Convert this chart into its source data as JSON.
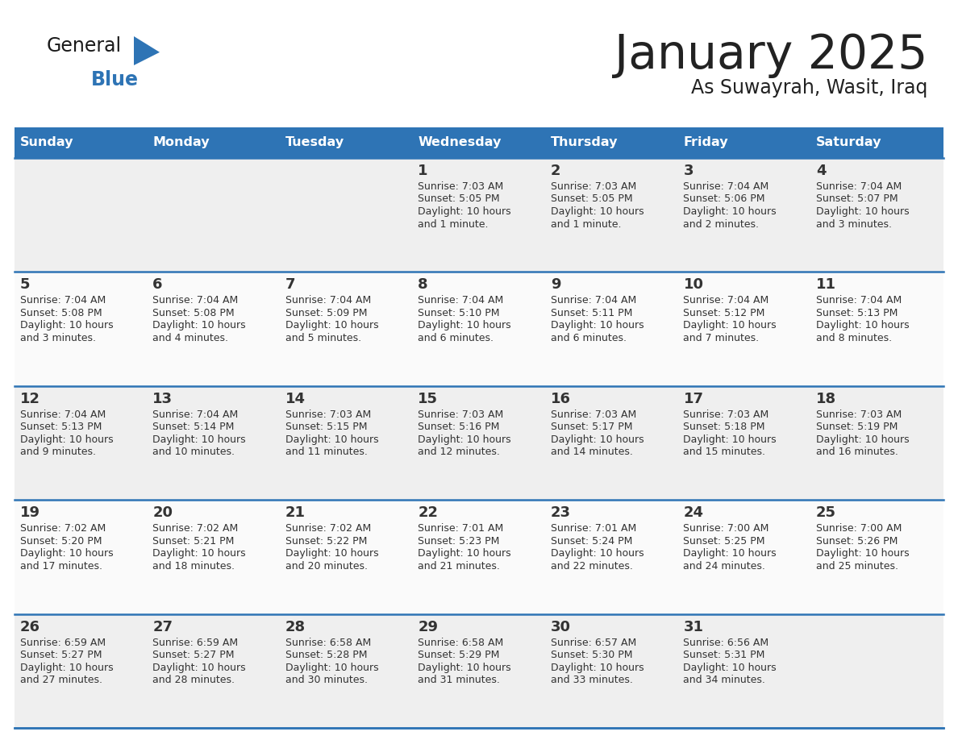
{
  "title": "January 2025",
  "subtitle": "As Suwayrah, Wasit, Iraq",
  "days_of_week": [
    "Sunday",
    "Monday",
    "Tuesday",
    "Wednesday",
    "Thursday",
    "Friday",
    "Saturday"
  ],
  "header_bg": "#2E74B5",
  "header_text": "#FFFFFF",
  "cell_bg_odd": "#EFEFEF",
  "cell_bg_even": "#FAFAFA",
  "divider_color": "#2E74B5",
  "text_color": "#333333",
  "title_color": "#222222",
  "logo_black": "#1a1a1a",
  "logo_blue": "#2E74B5",
  "calendar_data": [
    [
      null,
      null,
      null,
      {
        "day": 1,
        "sunrise": "7:03 AM",
        "sunset": "5:05 PM",
        "daylight": "10 hours and 1 minute."
      },
      {
        "day": 2,
        "sunrise": "7:03 AM",
        "sunset": "5:05 PM",
        "daylight": "10 hours and 1 minute."
      },
      {
        "day": 3,
        "sunrise": "7:04 AM",
        "sunset": "5:06 PM",
        "daylight": "10 hours and 2 minutes."
      },
      {
        "day": 4,
        "sunrise": "7:04 AM",
        "sunset": "5:07 PM",
        "daylight": "10 hours and 3 minutes."
      }
    ],
    [
      {
        "day": 5,
        "sunrise": "7:04 AM",
        "sunset": "5:08 PM",
        "daylight": "10 hours and 3 minutes."
      },
      {
        "day": 6,
        "sunrise": "7:04 AM",
        "sunset": "5:08 PM",
        "daylight": "10 hours and 4 minutes."
      },
      {
        "day": 7,
        "sunrise": "7:04 AM",
        "sunset": "5:09 PM",
        "daylight": "10 hours and 5 minutes."
      },
      {
        "day": 8,
        "sunrise": "7:04 AM",
        "sunset": "5:10 PM",
        "daylight": "10 hours and 6 minutes."
      },
      {
        "day": 9,
        "sunrise": "7:04 AM",
        "sunset": "5:11 PM",
        "daylight": "10 hours and 6 minutes."
      },
      {
        "day": 10,
        "sunrise": "7:04 AM",
        "sunset": "5:12 PM",
        "daylight": "10 hours and 7 minutes."
      },
      {
        "day": 11,
        "sunrise": "7:04 AM",
        "sunset": "5:13 PM",
        "daylight": "10 hours and 8 minutes."
      }
    ],
    [
      {
        "day": 12,
        "sunrise": "7:04 AM",
        "sunset": "5:13 PM",
        "daylight": "10 hours and 9 minutes."
      },
      {
        "day": 13,
        "sunrise": "7:04 AM",
        "sunset": "5:14 PM",
        "daylight": "10 hours and 10 minutes."
      },
      {
        "day": 14,
        "sunrise": "7:03 AM",
        "sunset": "5:15 PM",
        "daylight": "10 hours and 11 minutes."
      },
      {
        "day": 15,
        "sunrise": "7:03 AM",
        "sunset": "5:16 PM",
        "daylight": "10 hours and 12 minutes."
      },
      {
        "day": 16,
        "sunrise": "7:03 AM",
        "sunset": "5:17 PM",
        "daylight": "10 hours and 14 minutes."
      },
      {
        "day": 17,
        "sunrise": "7:03 AM",
        "sunset": "5:18 PM",
        "daylight": "10 hours and 15 minutes."
      },
      {
        "day": 18,
        "sunrise": "7:03 AM",
        "sunset": "5:19 PM",
        "daylight": "10 hours and 16 minutes."
      }
    ],
    [
      {
        "day": 19,
        "sunrise": "7:02 AM",
        "sunset": "5:20 PM",
        "daylight": "10 hours and 17 minutes."
      },
      {
        "day": 20,
        "sunrise": "7:02 AM",
        "sunset": "5:21 PM",
        "daylight": "10 hours and 18 minutes."
      },
      {
        "day": 21,
        "sunrise": "7:02 AM",
        "sunset": "5:22 PM",
        "daylight": "10 hours and 20 minutes."
      },
      {
        "day": 22,
        "sunrise": "7:01 AM",
        "sunset": "5:23 PM",
        "daylight": "10 hours and 21 minutes."
      },
      {
        "day": 23,
        "sunrise": "7:01 AM",
        "sunset": "5:24 PM",
        "daylight": "10 hours and 22 minutes."
      },
      {
        "day": 24,
        "sunrise": "7:00 AM",
        "sunset": "5:25 PM",
        "daylight": "10 hours and 24 minutes."
      },
      {
        "day": 25,
        "sunrise": "7:00 AM",
        "sunset": "5:26 PM",
        "daylight": "10 hours and 25 minutes."
      }
    ],
    [
      {
        "day": 26,
        "sunrise": "6:59 AM",
        "sunset": "5:27 PM",
        "daylight": "10 hours and 27 minutes."
      },
      {
        "day": 27,
        "sunrise": "6:59 AM",
        "sunset": "5:27 PM",
        "daylight": "10 hours and 28 minutes."
      },
      {
        "day": 28,
        "sunrise": "6:58 AM",
        "sunset": "5:28 PM",
        "daylight": "10 hours and 30 minutes."
      },
      {
        "day": 29,
        "sunrise": "6:58 AM",
        "sunset": "5:29 PM",
        "daylight": "10 hours and 31 minutes."
      },
      {
        "day": 30,
        "sunrise": "6:57 AM",
        "sunset": "5:30 PM",
        "daylight": "10 hours and 33 minutes."
      },
      {
        "day": 31,
        "sunrise": "6:56 AM",
        "sunset": "5:31 PM",
        "daylight": "10 hours and 34 minutes."
      },
      null
    ]
  ]
}
